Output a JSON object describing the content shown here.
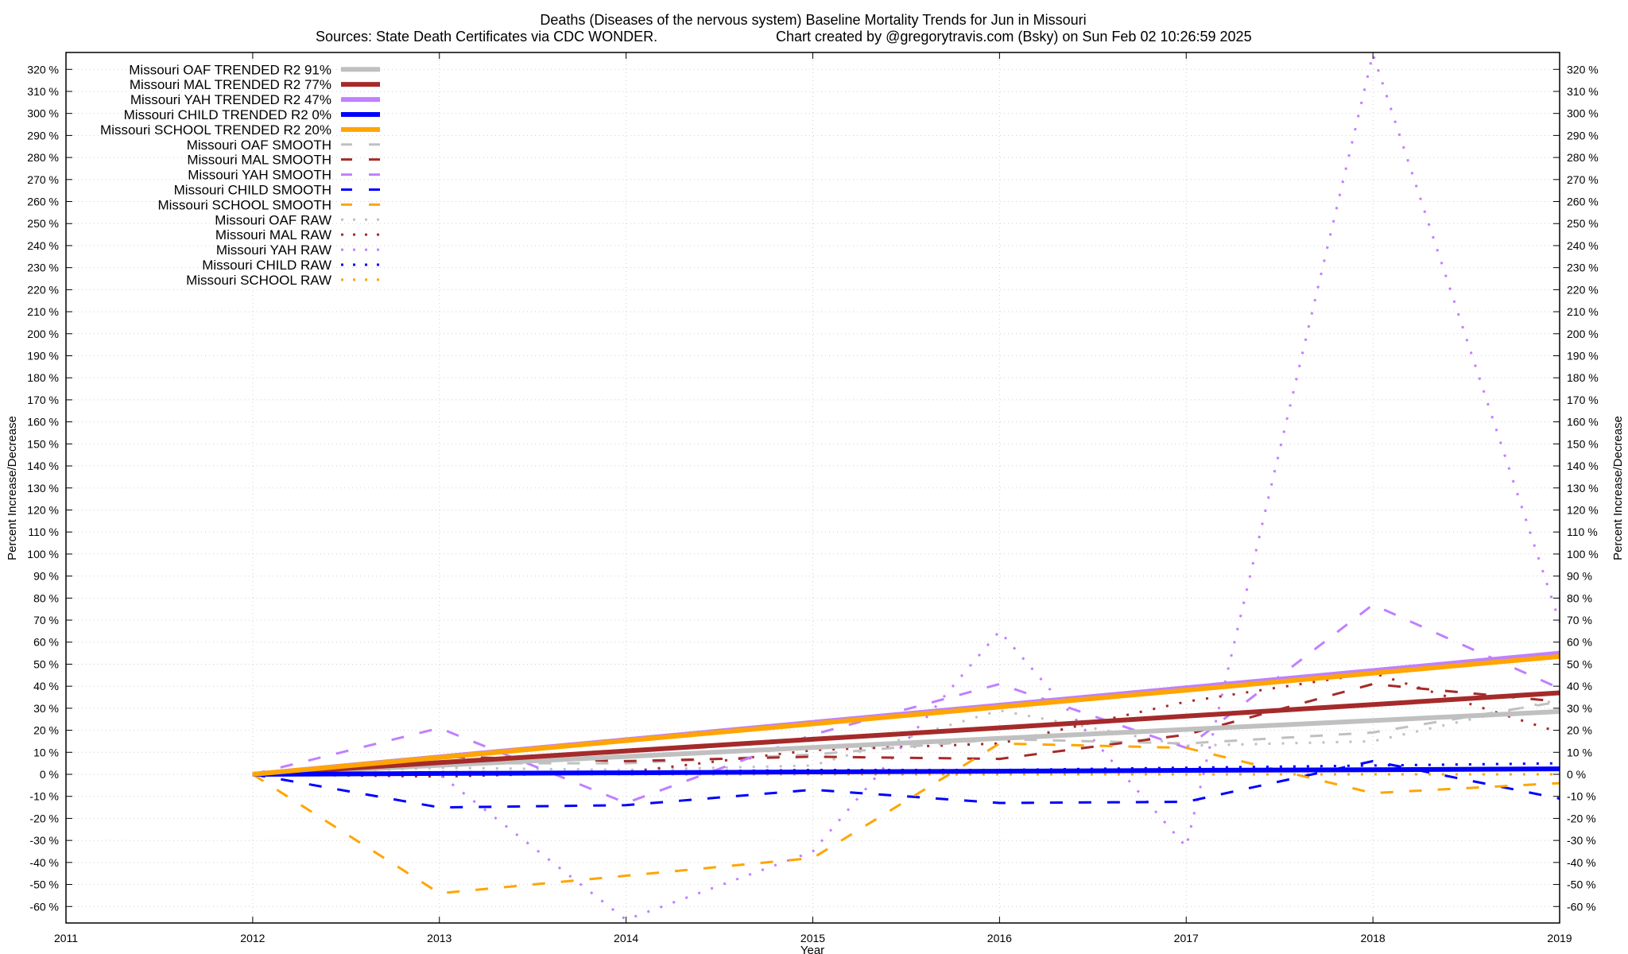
{
  "chart_data": {
    "type": "line",
    "title": "Deaths (Diseases of the nervous system)  Baseline Mortality Trends for Jun in Missouri",
    "subtitle_left": "Sources: State Death Certificates via CDC WONDER.",
    "subtitle_right": "Chart created by @gregorytravis.com (Bsky) on Sun Feb 02 10:26:59 2025",
    "xlabel": "Year",
    "ylabel": "Percent Increase/Decrease",
    "y2label": "Percent Increase/Decrease",
    "xlim": [
      2011,
      2019
    ],
    "ylim": [
      -65,
      327
    ],
    "x_ticks": [
      2011,
      2012,
      2013,
      2014,
      2015,
      2016,
      2017,
      2018,
      2019
    ],
    "y_ticks": [
      -60,
      -50,
      -40,
      -30,
      -20,
      -10,
      0,
      10,
      20,
      30,
      40,
      50,
      60,
      70,
      80,
      90,
      100,
      110,
      120,
      130,
      140,
      150,
      160,
      170,
      180,
      190,
      200,
      210,
      220,
      230,
      240,
      250,
      260,
      270,
      280,
      290,
      300,
      310,
      320
    ],
    "y_tick_suffix": " %",
    "grid": true,
    "legend_position": "top-left",
    "x": [
      2012,
      2013,
      2014,
      2015,
      2016,
      2017,
      2018,
      2019
    ],
    "series": [
      {
        "name": "Missouri OAF TRENDED R2  91%",
        "style": "trend",
        "color": "#c0c0c0",
        "values": [
          0,
          4.1,
          8.1,
          12.2,
          16.3,
          20.4,
          24.4,
          28.5
        ]
      },
      {
        "name": "Missouri MAL TRENDED R2  77%",
        "style": "trend",
        "color": "#a52a2a",
        "values": [
          0,
          5.3,
          10.6,
          15.9,
          21.1,
          26.4,
          31.7,
          37
        ]
      },
      {
        "name": "Missouri YAH TRENDED R2  47%",
        "style": "trend",
        "color": "#c080ff",
        "values": [
          0,
          7.9,
          15.7,
          23.6,
          31.4,
          39.3,
          47.1,
          55
        ]
      },
      {
        "name": "Missouri CHILD TRENDED R2   0%",
        "style": "trend",
        "color": "#0000ff",
        "values": [
          0,
          0.4,
          0.7,
          1.1,
          1.4,
          1.8,
          2.1,
          2.5
        ]
      },
      {
        "name": "Missouri SCHOOL TRENDED R2  20%",
        "style": "trend",
        "color": "#ffa500",
        "values": [
          0,
          7.6,
          15.3,
          22.9,
          30.6,
          38.2,
          45.9,
          53.5
        ]
      },
      {
        "name": "Missouri OAF SMOOTH",
        "style": "smooth",
        "color": "#c0c0c0",
        "values": [
          0,
          5,
          5,
          9,
          16,
          14,
          19,
          33
        ]
      },
      {
        "name": "Missouri MAL SMOOTH",
        "style": "smooth",
        "color": "#a52a2a",
        "values": [
          0,
          8,
          6,
          8,
          7,
          18,
          41,
          33
        ]
      },
      {
        "name": "Missouri YAH SMOOTH",
        "style": "smooth",
        "color": "#c080ff",
        "values": [
          0,
          21,
          -13,
          18,
          41,
          12,
          77,
          39
        ]
      },
      {
        "name": "Missouri CHILD SMOOTH",
        "style": "smooth",
        "color": "#0000ff",
        "values": [
          0,
          -15,
          -14,
          -7,
          -13,
          -12.5,
          6,
          -11
        ]
      },
      {
        "name": "Missouri SCHOOL SMOOTH",
        "style": "smooth",
        "color": "#ffa500",
        "values": [
          0,
          -54,
          -46,
          -38,
          14,
          12,
          -8.5,
          -4
        ]
      },
      {
        "name": "Missouri OAF RAW",
        "style": "raw",
        "color": "#c0c0c0",
        "values": [
          0,
          3,
          2,
          4,
          29,
          13,
          15,
          34
        ]
      },
      {
        "name": "Missouri MAL RAW",
        "style": "raw",
        "color": "#a52a2a",
        "values": [
          0,
          -1,
          1,
          11,
          14,
          33,
          46,
          19
        ]
      },
      {
        "name": "Missouri YAH RAW",
        "style": "raw",
        "color": "#c080ff",
        "values": [
          0,
          0,
          -66,
          -35,
          65,
          -33,
          327,
          69
        ]
      },
      {
        "name": "Missouri CHILD RAW",
        "style": "raw",
        "color": "#0000ff",
        "values": [
          0,
          1,
          1,
          2,
          2,
          3,
          4,
          5
        ]
      },
      {
        "name": "Missouri SCHOOL RAW",
        "style": "raw",
        "color": "#ffa500",
        "values": [
          0,
          0,
          0,
          0,
          0,
          0,
          0,
          0
        ]
      }
    ]
  }
}
